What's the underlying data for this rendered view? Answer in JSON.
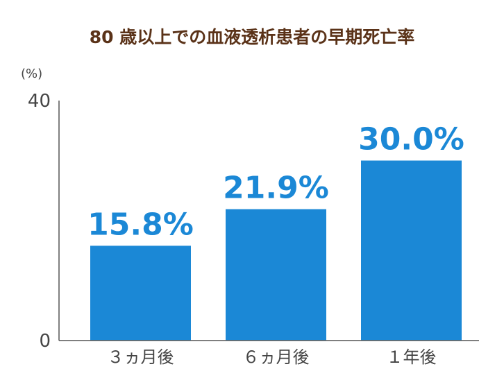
{
  "chart_data": {
    "type": "bar",
    "title": "80 歳以上での血液透析患者の早期死亡率",
    "unit_label": "(%)",
    "categories": [
      "３ヵ月後",
      "６ヵ月後",
      "１年後"
    ],
    "values": [
      15.8,
      21.9,
      30.0
    ],
    "data_labels": [
      "15.8%",
      "21.9%",
      "30.0%"
    ],
    "ylim": [
      0,
      40
    ],
    "yticks": [
      0,
      40
    ],
    "ytick_labels": [
      "0",
      "40"
    ],
    "grid": false,
    "legend": "none",
    "bar_color": "#1b88d6",
    "label_color": "#1b88d6",
    "title_color": "#5a3218"
  }
}
